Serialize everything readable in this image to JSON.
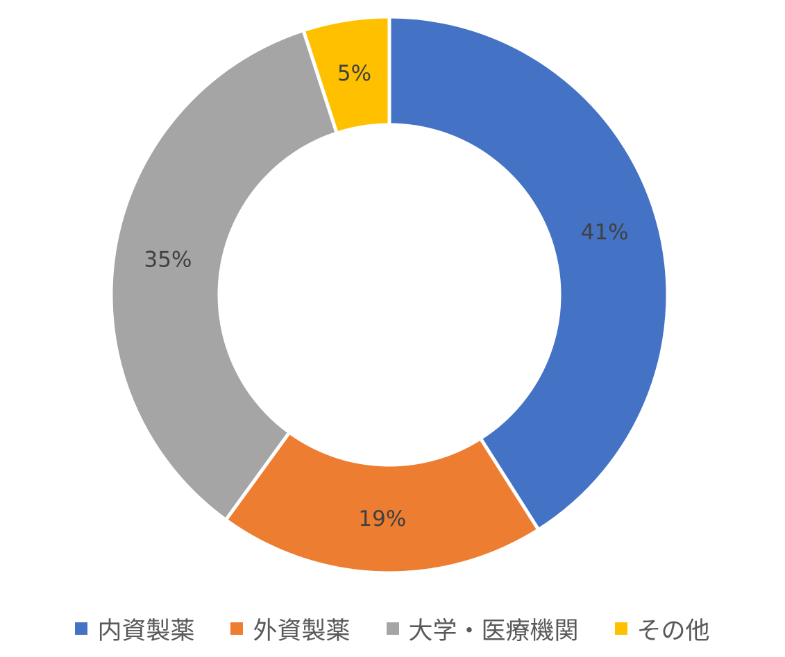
{
  "chart_data": {
    "type": "pie",
    "variant": "donut",
    "categories": [
      "内資製薬",
      "外資製薬",
      "大学・医療機関",
      "その他"
    ],
    "values": [
      41,
      19,
      35,
      5
    ],
    "labels": [
      "41%",
      "19%",
      "35%",
      "5%"
    ],
    "colors": [
      "#4472C4",
      "#ED7D31",
      "#A5A5A5",
      "#FFC000"
    ],
    "title": "",
    "legend_position": "bottom",
    "data_labels": true
  }
}
